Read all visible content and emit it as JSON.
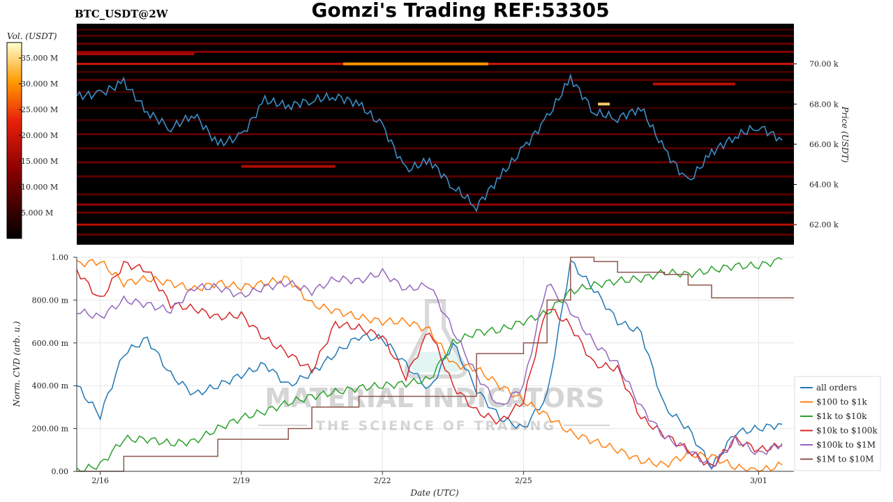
{
  "header": {
    "title": "Gomzi's Trading REF:53305",
    "symbol": "BTC_USDT@2W"
  },
  "watermark": {
    "line1": "MATERIAL INDICATORS",
    "line2": "THE SCIENCE OF TRADING"
  },
  "colors": {
    "price": "#3b8fc8",
    "all_orders": "#1f77b4",
    "o100_1k": "#ff7f0e",
    "o1k_10k": "#2ca02c",
    "o10k_100k": "#d62728",
    "o100k_1m": "#9467bd",
    "o1m_10m": "#8c564b"
  },
  "colorbar": {
    "label": "Vol. (USDT)",
    "ticks": [
      "5.000 M",
      "10.000 M",
      "15.000 M",
      "20.000 M",
      "25.000 M",
      "30.000 M",
      "35.000 M"
    ],
    "tick_values": [
      5,
      10,
      15,
      20,
      25,
      30,
      35
    ],
    "range": [
      0,
      38
    ]
  },
  "chart_data": [
    {
      "type": "heatmap",
      "title": "BTC_USDT@2W",
      "ylabel": "Price (USDT)",
      "y_ticks": [
        "62.00 k",
        "64.00 k",
        "66.00 k",
        "68.00 k",
        "70.00 k"
      ],
      "y_tick_values": [
        62000,
        64000,
        66000,
        68000,
        70000
      ],
      "ylim": [
        61000,
        72000
      ],
      "xlim": [
        "2024-02-15 12:00",
        "2024-03-01 18:00"
      ],
      "price_series": {
        "x": [
          "2024-02-15 12:00",
          "2024-02-16 00:00",
          "2024-02-16 12:00",
          "2024-02-17 00:00",
          "2024-02-17 12:00",
          "2024-02-18 00:00",
          "2024-02-18 12:00",
          "2024-02-19 00:00",
          "2024-02-19 12:00",
          "2024-02-20 00:00",
          "2024-02-20 12:00",
          "2024-02-21 00:00",
          "2024-02-21 12:00",
          "2024-02-22 00:00",
          "2024-02-22 12:00",
          "2024-02-23 00:00",
          "2024-02-23 12:00",
          "2024-02-24 00:00",
          "2024-02-24 12:00",
          "2024-02-25 00:00",
          "2024-02-25 12:00",
          "2024-02-26 00:00",
          "2024-02-26 12:00",
          "2024-02-27 00:00",
          "2024-02-27 12:00",
          "2024-02-28 00:00",
          "2024-02-28 12:00",
          "2024-02-29 00:00",
          "2024-02-29 12:00",
          "2024-03-01 00:00",
          "2024-03-01 12:00"
        ],
        "values": [
          68400,
          68500,
          69100,
          67600,
          66800,
          67500,
          66000,
          66400,
          68200,
          67900,
          68200,
          68400,
          68000,
          66900,
          64700,
          65200,
          63900,
          62900,
          64400,
          65800,
          67300,
          69300,
          67600,
          67300,
          67800,
          65700,
          64100,
          65600,
          66400,
          66900,
          66200
        ]
      },
      "bands": [
        {
          "price": 71700,
          "intensity": 6
        },
        {
          "price": 71400,
          "intensity": 8
        },
        {
          "price": 71000,
          "intensity": 10
        },
        {
          "price": 70600,
          "intensity": 13
        },
        {
          "price": 70000,
          "intensity": 20
        },
        {
          "price": 69600,
          "intensity": 7
        },
        {
          "price": 69200,
          "intensity": 9
        },
        {
          "price": 68600,
          "intensity": 6
        },
        {
          "price": 67800,
          "intensity": 5
        },
        {
          "price": 67200,
          "intensity": 6
        },
        {
          "price": 66500,
          "intensity": 9
        },
        {
          "price": 65800,
          "intensity": 8
        },
        {
          "price": 65100,
          "intensity": 10
        },
        {
          "price": 64400,
          "intensity": 9
        },
        {
          "price": 63500,
          "intensity": 8
        },
        {
          "price": 63000,
          "intensity": 14
        },
        {
          "price": 62600,
          "intensity": 10
        },
        {
          "price": 62000,
          "intensity": 18
        },
        {
          "price": 61500,
          "intensity": 9
        }
      ],
      "hotspots": [
        {
          "x0": "2024-02-21 04:00",
          "x1": "2024-02-24 06:00",
          "price": 70000,
          "intensity": 30
        },
        {
          "x0": "2024-02-15 12:00",
          "x1": "2024-02-18 00:00",
          "price": 70500,
          "intensity": 16
        },
        {
          "x0": "2024-02-19 00:00",
          "x1": "2024-02-21 00:00",
          "price": 64900,
          "intensity": 17
        },
        {
          "x0": "2024-02-27 18:00",
          "x1": "2024-02-29 12:00",
          "price": 69000,
          "intensity": 18
        },
        {
          "x0": "2024-02-26 14:00",
          "x1": "2024-02-26 20:00",
          "price": 68000,
          "intensity": 34
        }
      ]
    },
    {
      "type": "line",
      "xlabel": "Date (UTC)",
      "ylabel": "Norm. CVD (arb. u.)",
      "x_ticks": [
        "2/16",
        "2/19",
        "2/22",
        "2/25",
        "3/01"
      ],
      "x_tick_dates": [
        "2024-02-16 00:00",
        "2024-02-19 00:00",
        "2024-02-22 00:00",
        "2024-02-25 00:00",
        "2024-03-01 00:00"
      ],
      "y_ticks": [
        "0.00",
        "200.00 m",
        "400.00 m",
        "600.00 m",
        "800.00 m",
        "1.00"
      ],
      "y_tick_values": [
        0,
        0.2,
        0.4,
        0.6,
        0.8,
        1.0
      ],
      "ylim": [
        0,
        1
      ],
      "xlim": [
        "2024-02-15 12:00",
        "2024-03-01 18:00"
      ],
      "legend_position": "lower-right",
      "x": [
        "2024-02-15 12:00",
        "2024-02-16 00:00",
        "2024-02-16 12:00",
        "2024-02-17 00:00",
        "2024-02-17 12:00",
        "2024-02-18 00:00",
        "2024-02-18 12:00",
        "2024-02-19 00:00",
        "2024-02-19 12:00",
        "2024-02-20 00:00",
        "2024-02-20 12:00",
        "2024-02-21 00:00",
        "2024-02-21 12:00",
        "2024-02-22 00:00",
        "2024-02-22 12:00",
        "2024-02-23 00:00",
        "2024-02-23 12:00",
        "2024-02-24 00:00",
        "2024-02-24 12:00",
        "2024-02-25 00:00",
        "2024-02-25 12:00",
        "2024-02-26 00:00",
        "2024-02-26 12:00",
        "2024-02-27 00:00",
        "2024-02-27 12:00",
        "2024-02-28 00:00",
        "2024-02-28 12:00",
        "2024-02-29 00:00",
        "2024-02-29 12:00",
        "2024-03-01 00:00",
        "2024-03-01 12:00"
      ],
      "series": [
        {
          "name": "all orders",
          "color_key": "all_orders",
          "values": [
            0.4,
            0.26,
            0.55,
            0.62,
            0.45,
            0.36,
            0.4,
            0.45,
            0.5,
            0.4,
            0.46,
            0.55,
            0.63,
            0.62,
            0.5,
            0.38,
            0.6,
            0.38,
            0.25,
            0.2,
            0.35,
            0.98,
            0.85,
            0.7,
            0.65,
            0.3,
            0.2,
            0.02,
            0.18,
            0.2,
            0.22
          ]
        },
        {
          "name": "$100 to $1k",
          "color_key": "o100_1k",
          "values": [
            0.97,
            0.98,
            0.88,
            0.9,
            0.88,
            0.85,
            0.88,
            0.86,
            0.88,
            0.9,
            0.78,
            0.75,
            0.72,
            0.7,
            0.7,
            0.66,
            0.5,
            0.48,
            0.4,
            0.33,
            0.26,
            0.18,
            0.14,
            0.1,
            0.05,
            0.03,
            0.08,
            0.07,
            0.02,
            0.0,
            0.03
          ]
        },
        {
          "name": "$1k to $10k",
          "color_key": "o1k_10k",
          "values": [
            0.0,
            0.03,
            0.15,
            0.15,
            0.13,
            0.14,
            0.2,
            0.25,
            0.28,
            0.32,
            0.35,
            0.37,
            0.39,
            0.4,
            0.41,
            0.43,
            0.6,
            0.65,
            0.66,
            0.7,
            0.74,
            0.84,
            0.87,
            0.89,
            0.9,
            0.93,
            0.92,
            0.94,
            0.96,
            0.96,
            0.99
          ]
        },
        {
          "name": "$10k to $100k",
          "color_key": "o10k_100k",
          "values": [
            0.94,
            0.8,
            0.97,
            0.94,
            0.78,
            0.76,
            0.72,
            0.73,
            0.62,
            0.55,
            0.47,
            0.69,
            0.67,
            0.63,
            0.44,
            0.66,
            0.4,
            0.28,
            0.23,
            0.33,
            0.77,
            0.68,
            0.5,
            0.48,
            0.25,
            0.17,
            0.1,
            0.02,
            0.15,
            0.1,
            0.12
          ]
        },
        {
          "name": "$100k to $1M",
          "color_key": "o100k_1m",
          "values": [
            0.75,
            0.72,
            0.8,
            0.78,
            0.75,
            0.86,
            0.86,
            0.82,
            0.86,
            0.88,
            0.84,
            0.9,
            0.89,
            0.93,
            0.85,
            0.87,
            0.66,
            0.45,
            0.3,
            0.4,
            0.88,
            0.75,
            0.6,
            0.5,
            0.3,
            0.16,
            0.1,
            0.02,
            0.15,
            0.08,
            0.13
          ]
        },
        {
          "name": "$1M to $10M",
          "color_key": "o1m_10m",
          "values": [
            0.0,
            0.0,
            0.07,
            0.07,
            0.07,
            0.07,
            0.15,
            0.15,
            0.15,
            0.2,
            0.3,
            0.3,
            0.35,
            0.35,
            0.35,
            0.35,
            0.35,
            0.55,
            0.55,
            0.6,
            0.8,
            1.0,
            0.98,
            0.93,
            0.93,
            0.92,
            0.87,
            0.81,
            0.81,
            0.81,
            0.81
          ]
        }
      ]
    }
  ]
}
